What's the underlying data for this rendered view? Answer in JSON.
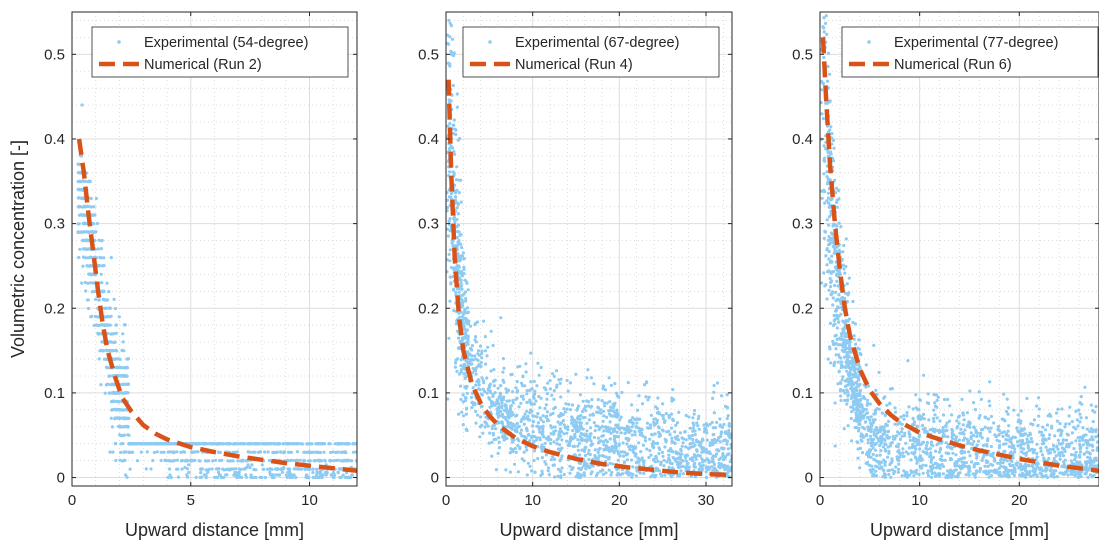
{
  "chart_data": [
    {
      "type": "scatter",
      "xlabel": "Upward distance [mm]",
      "ylabel": "Volumetric concentration [-]",
      "xlim": [
        0,
        12
      ],
      "ylim": [
        -0.01,
        0.55
      ],
      "xticks": [
        0,
        5,
        10
      ],
      "yticks": [
        0,
        0.1,
        0.2,
        0.3,
        0.4,
        0.5
      ],
      "grid": "major solid + minor dotted",
      "legend_position": "top-right",
      "colors": {
        "experimental": "#8ecbf2",
        "numerical": "#d95319"
      },
      "series": [
        {
          "name": "Experimental (54-degree)",
          "kind": "scatter",
          "description_pts": [
            [
              0.3,
              0.33
            ],
            [
              0.5,
              0.31
            ],
            [
              0.7,
              0.29
            ],
            [
              0.9,
              0.27
            ],
            [
              1.0,
              0.24
            ],
            [
              1.2,
              0.2
            ],
            [
              1.5,
              0.16
            ],
            [
              1.7,
              0.13
            ],
            [
              2.0,
              0.1
            ],
            [
              2.3,
              0.08
            ],
            [
              3.0,
              0.06
            ],
            [
              4.0,
              0.04
            ],
            [
              6.0,
              0.03
            ],
            [
              8.0,
              0.02
            ],
            [
              10.0,
              0.02
            ],
            [
              12.0,
              0.02
            ]
          ]
        },
        {
          "name": "Numerical (Run 2)",
          "kind": "line",
          "x": [
            0.3,
            0.5,
            0.7,
            0.9,
            1.1,
            1.3,
            1.5,
            1.8,
            2.1,
            2.5,
            3.0,
            3.5,
            4.0,
            5.0,
            6.0,
            7.0,
            8.0,
            9.0,
            10.0,
            11.0,
            12.0
          ],
          "y": [
            0.4,
            0.36,
            0.31,
            0.265,
            0.22,
            0.18,
            0.15,
            0.12,
            0.095,
            0.078,
            0.062,
            0.052,
            0.045,
            0.036,
            0.03,
            0.025,
            0.021,
            0.017,
            0.014,
            0.011,
            0.008
          ]
        }
      ]
    },
    {
      "type": "scatter",
      "xlabel": "Upward distance [mm]",
      "xlim": [
        0,
        33
      ],
      "ylim": [
        -0.01,
        0.55
      ],
      "xticks": [
        0,
        10,
        20,
        30
      ],
      "yticks": [
        0,
        0.1,
        0.2,
        0.3,
        0.4,
        0.5
      ],
      "grid": "major solid + minor dotted",
      "legend_position": "top-right",
      "colors": {
        "experimental": "#8ecbf2",
        "numerical": "#d95319"
      },
      "series": [
        {
          "name": "Experimental (67-degree)",
          "kind": "scatter",
          "description_pts": [
            [
              0.5,
              0.38
            ],
            [
              1.0,
              0.3
            ],
            [
              1.5,
              0.22
            ],
            [
              2.0,
              0.17
            ],
            [
              3.0,
              0.13
            ],
            [
              5.0,
              0.09
            ],
            [
              8.0,
              0.07
            ],
            [
              12.0,
              0.06
            ],
            [
              16.0,
              0.05
            ],
            [
              20.0,
              0.045
            ],
            [
              25.0,
              0.035
            ],
            [
              30.0,
              0.03
            ],
            [
              33.0,
              0.03
            ]
          ]
        },
        {
          "name": "Numerical (Run 4)",
          "kind": "line",
          "x": [
            0.3,
            0.6,
            1.0,
            1.5,
            2.0,
            3.0,
            4.0,
            5.0,
            6.0,
            8.0,
            10.0,
            12.0,
            15.0,
            18.0,
            21.0,
            24.0,
            27.0,
            30.0,
            33.0
          ],
          "y": [
            0.47,
            0.36,
            0.26,
            0.19,
            0.15,
            0.11,
            0.088,
            0.073,
            0.062,
            0.047,
            0.037,
            0.03,
            0.022,
            0.016,
            0.012,
            0.009,
            0.006,
            0.004,
            0.003
          ]
        }
      ]
    },
    {
      "type": "scatter",
      "xlabel": "Upward distance [mm]",
      "xlim": [
        0,
        28
      ],
      "ylim": [
        -0.01,
        0.55
      ],
      "xticks": [
        0,
        10,
        20
      ],
      "yticks": [
        0,
        0.1,
        0.2,
        0.3,
        0.4,
        0.5
      ],
      "grid": "major solid + minor dotted",
      "legend_position": "top-right",
      "colors": {
        "experimental": "#8ecbf2",
        "numerical": "#d95319"
      },
      "series": [
        {
          "name": "Experimental (77-degree)",
          "kind": "scatter",
          "description_pts": [
            [
              0.3,
              0.5
            ],
            [
              0.6,
              0.43
            ],
            [
              1.0,
              0.33
            ],
            [
              1.5,
              0.25
            ],
            [
              2.0,
              0.2
            ],
            [
              3.0,
              0.14
            ],
            [
              4.0,
              0.09
            ],
            [
              5.0,
              0.05
            ],
            [
              8.0,
              0.04
            ],
            [
              12.0,
              0.035
            ],
            [
              16.0,
              0.03
            ],
            [
              20.0,
              0.025
            ],
            [
              25.0,
              0.025
            ],
            [
              28.0,
              0.025
            ]
          ]
        },
        {
          "name": "Numerical (Run 6)",
          "kind": "line",
          "x": [
            0.3,
            0.6,
            1.0,
            1.5,
            2.0,
            2.5,
            3.0,
            4.0,
            5.0,
            6.0,
            7.0,
            8.0,
            10.0,
            12.0,
            14.0,
            16.0,
            18.0,
            20.0,
            22.0,
            24.0,
            26.0,
            28.0
          ],
          "y": [
            0.52,
            0.45,
            0.37,
            0.3,
            0.245,
            0.2,
            0.168,
            0.128,
            0.103,
            0.087,
            0.075,
            0.066,
            0.053,
            0.045,
            0.038,
            0.032,
            0.027,
            0.022,
            0.018,
            0.014,
            0.011,
            0.008
          ]
        }
      ]
    }
  ]
}
